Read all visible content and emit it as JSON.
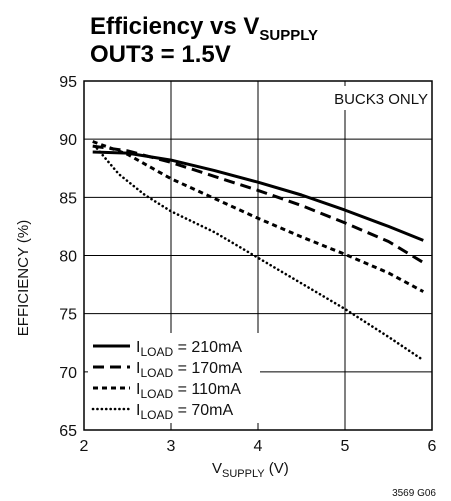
{
  "chart_data": {
    "type": "line",
    "title": {
      "line1": {
        "main": "Efficiency vs V",
        "sub": "SUPPLY"
      },
      "line2": "OUT3 = 1.5V"
    },
    "xlabel": {
      "main": "V",
      "sub": "SUPPLY",
      "suffix": " (V)"
    },
    "ylabel": "EFFICIENCY (%)",
    "xlim": [
      2,
      6
    ],
    "ylim": [
      65,
      95
    ],
    "xticks": [
      "2",
      "3",
      "4",
      "5",
      "6"
    ],
    "yticks": [
      "65",
      "70",
      "75",
      "80",
      "85",
      "90",
      "95"
    ],
    "grid": true,
    "legend_position": "bottom-left",
    "annotation": "BUCK3 ONLY",
    "figure_id": "3569 G06",
    "series": [
      {
        "name": {
          "main": "I",
          "sub": "LOAD",
          "suffix": " = 210mA"
        },
        "style": "solid",
        "x": [
          2.1,
          2.5,
          3.0,
          3.5,
          4.0,
          4.5,
          5.0,
          5.5,
          5.9
        ],
        "y": [
          88.9,
          88.8,
          88.2,
          87.3,
          86.3,
          85.2,
          83.9,
          82.5,
          81.3
        ]
      },
      {
        "name": {
          "main": "I",
          "sub": "LOAD",
          "suffix": " = 170mA"
        },
        "style": "long-dash",
        "x": [
          2.1,
          2.5,
          3.0,
          3.5,
          4.0,
          4.5,
          5.0,
          5.5,
          5.9
        ],
        "y": [
          89.4,
          89.0,
          88.0,
          86.8,
          85.6,
          84.3,
          82.8,
          81.2,
          79.4
        ]
      },
      {
        "name": {
          "main": "I",
          "sub": "LOAD",
          "suffix": " = 110mA"
        },
        "style": "short-dash",
        "x": [
          2.1,
          2.5,
          3.0,
          3.5,
          4.0,
          4.5,
          5.0,
          5.5,
          5.9
        ],
        "y": [
          89.8,
          88.7,
          86.6,
          84.9,
          83.2,
          81.6,
          80.1,
          78.5,
          76.9
        ]
      },
      {
        "name": {
          "main": "I",
          "sub": "LOAD",
          "suffix": " = 70mA"
        },
        "style": "dotted",
        "x": [
          2.15,
          2.4,
          2.7,
          3.0,
          3.5,
          4.0,
          4.5,
          5.0,
          5.5,
          5.9
        ],
        "y": [
          89.2,
          87.0,
          85.2,
          83.8,
          82.0,
          79.8,
          77.6,
          75.4,
          73.0,
          71.0
        ]
      }
    ]
  }
}
